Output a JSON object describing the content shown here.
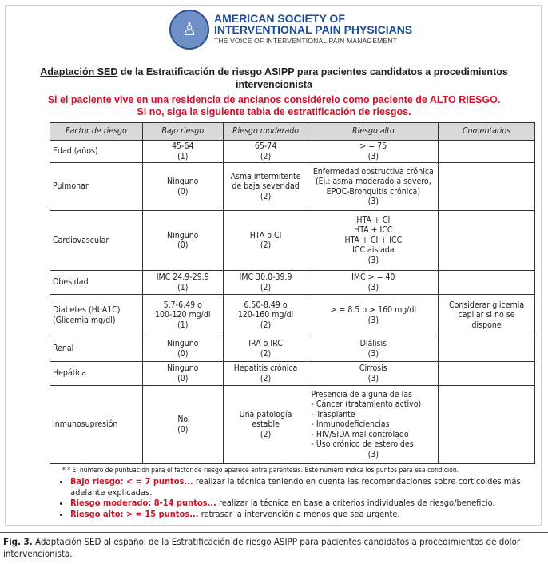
{
  "logo": {
    "line1": "AMERICAN SOCIETY OF",
    "line2": "INTERVENTIONAL PAIN PHYSICIANS",
    "line3": "THE VOICE OF INTERVENTIONAL PAIN MANAGEMENT",
    "seal_text": "AMERICAN SOCIETY OF INTERVENTIONAL PAIN PHYSICIANS ASIPP",
    "brand_color": "#1b4ca0"
  },
  "title": {
    "underlined": "Adaptación SED",
    "rest": " de la Estratificación de riesgo ASIPP para pacientes candidatos a procedimientos intervencionista"
  },
  "warning": {
    "line1": "Si el paciente vive en una residencia de ancianos considérelo como paciente de ALTO RIESGO.",
    "line2": "Si no, siga la siguiente tabla de estratificación de riesgos.",
    "color": "#d2112a"
  },
  "table": {
    "headers": [
      "Factor de riesgo",
      "Bajo riesgo",
      "Riesgo moderado",
      "Riesgo alto",
      "Comentarios"
    ],
    "rows": [
      {
        "factor": "Edad (años)",
        "bajo": "45-64\n(1)",
        "moderado": "65-74\n(2)",
        "alto": "> = 75\n(3)",
        "comentarios": ""
      },
      {
        "factor": "Pulmonar",
        "bajo": "Ninguno\n(0)",
        "moderado": "Asma intermitente\nde baja severidad\n(2)",
        "alto": "Enfermedad obstructiva crónica\n(Ej.: asma moderado a severo,\nEPOC-Bronquitis crónica)\n(3)",
        "comentarios": ""
      },
      {
        "factor": "Cardiovascular",
        "bajo": "Ninguno\n(0)",
        "moderado": "HTA o CI\n(2)",
        "alto": "HTA + CI\nHTA + ICC\nHTA + CI + ICC\nICC aislada\n(3)",
        "comentarios": ""
      },
      {
        "factor": "Obesidad",
        "bajo": "IMC 24.9-29.9\n(1)",
        "moderado": "IMC 30.0-39.9\n(2)",
        "alto": "IMC > = 40\n(3)",
        "comentarios": ""
      },
      {
        "factor": "Diabetes (HbA1C) (Glicemia mg/dl)",
        "bajo": "5.7-6.49 o\n100-120 mg/dl\n(1)",
        "moderado": "6.50-8.49 o\n120-160 mg/dl\n(2)",
        "alto": "> = 8.5 o > 160 mg/dl\n(3)",
        "comentarios": "Considerar glicemia\ncapilar si no se\ndispone"
      },
      {
        "factor": "Renal",
        "bajo": "Ninguno\n(0)",
        "moderado": "IRA o IRC\n(2)",
        "alto": "Diálisis\n(3)",
        "comentarios": ""
      },
      {
        "factor": "Hepática",
        "bajo": "Ninguno\n(0)",
        "moderado": "Hepatitis crónica\n(2)",
        "alto": "Cirrosis\n(3)",
        "comentarios": ""
      },
      {
        "factor": "Inmunosupresión",
        "bajo": "No\n(0)",
        "moderado": "Una patología\nestable\n(2)",
        "alto_list": [
          "Presencia de alguna de las",
          "- Cáncer (tratamiento activo)",
          "- Trasplante",
          "- Inmunodeficiencias",
          "- HIV/SIDA mal controlado",
          "- Uso crónico de esteroides"
        ],
        "alto_points": "(3)",
        "comentarios": ""
      }
    ]
  },
  "note": "* * El número de puntuación para el factor de riesgo aparece entre paréntesis. Este número indica los puntos para esa condición.",
  "bullets": [
    {
      "label": "Bajo riesgo: < = 7 puntos...",
      "text": " realizar la técnica teniendo en cuenta las recomendaciones sobre corticoides más adelante explicadas."
    },
    {
      "label": "Riesgo moderado: 8-14 puntos...",
      "text": " realizar la técnica en base a criterios individuales de riesgo/beneficio."
    },
    {
      "label": "Riesgo alto: > = 15 puntos...",
      "text": " retrasar la intervención a menos que sea urgente."
    }
  ],
  "caption": {
    "label": "Fig. 3.",
    "text": " Adaptación SED al español de la Estratificación de riesgo ASIPP para pacientes candidatos a procedimientos de dolor intervencionista."
  }
}
